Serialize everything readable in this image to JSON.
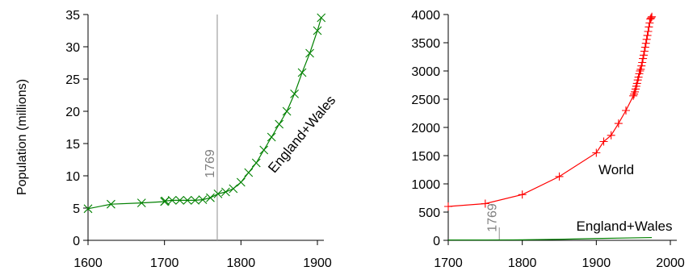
{
  "chart_data": [
    {
      "type": "line",
      "ylabel": "Population (millions)",
      "xlim": [
        1600,
        1900
      ],
      "ylim": [
        0,
        35
      ],
      "xticks": [
        "1600",
        "1700",
        "1800",
        "1900"
      ],
      "yticks": [
        "0",
        "5",
        "10",
        "15",
        "20",
        "25",
        "30",
        "35"
      ],
      "grid": false,
      "vline": {
        "x": 1769,
        "label": "1769"
      },
      "series": [
        {
          "name": "England+Wales",
          "color": "#008000",
          "marker": "x",
          "x": [
            1600,
            1630,
            1670,
            1700,
            1701,
            1710,
            1720,
            1730,
            1740,
            1750,
            1760,
            1770,
            1780,
            1790,
            1800,
            1810,
            1820,
            1830,
            1840,
            1850,
            1860,
            1870,
            1880,
            1890,
            1900,
            1905
          ],
          "values": [
            4.9,
            5.6,
            5.8,
            6.0,
            6.1,
            6.2,
            6.2,
            6.2,
            6.2,
            6.3,
            6.6,
            7.2,
            7.5,
            8.0,
            9.0,
            10.5,
            12.0,
            14.0,
            16.0,
            18.0,
            20.0,
            22.7,
            26.0,
            29.0,
            32.5,
            34.5
          ]
        }
      ]
    },
    {
      "type": "line",
      "xlim": [
        1700,
        2000
      ],
      "ylim": [
        0,
        4000
      ],
      "xticks": [
        "1700",
        "1800",
        "1900",
        "2000"
      ],
      "yticks": [
        "0",
        "500",
        "1000",
        "1500",
        "2000",
        "2500",
        "3000",
        "3500",
        "4000"
      ],
      "grid": false,
      "vline": {
        "x": 1769,
        "label": "1769"
      },
      "series": [
        {
          "name": "World",
          "color": "#ff0000",
          "marker": "+",
          "x": [
            1700,
            1750,
            1800,
            1850,
            1900,
            1910,
            1920,
            1930,
            1940,
            1950,
            1951,
            1952,
            1953,
            1954,
            1955,
            1956,
            1957,
            1958,
            1959,
            1960,
            1961,
            1962,
            1963,
            1964,
            1965,
            1966,
            1967,
            1968,
            1969,
            1970,
            1971,
            1972,
            1973,
            1974,
            1975
          ],
          "values": [
            600,
            650,
            810,
            1130,
            1550,
            1750,
            1860,
            2070,
            2300,
            2560,
            2590,
            2630,
            2680,
            2730,
            2780,
            2840,
            2890,
            2950,
            3000,
            3030,
            3090,
            3150,
            3220,
            3280,
            3350,
            3420,
            3490,
            3560,
            3630,
            3700,
            3780,
            3850,
            3920,
            3940,
            3960
          ]
        },
        {
          "name": "England+Wales",
          "color": "#008000",
          "marker": "none",
          "x": [
            1700,
            1750,
            1800,
            1850,
            1900,
            1950,
            1975
          ],
          "values": [
            6,
            6.3,
            9,
            18,
            32.5,
            43.8,
            49
          ]
        }
      ]
    }
  ]
}
